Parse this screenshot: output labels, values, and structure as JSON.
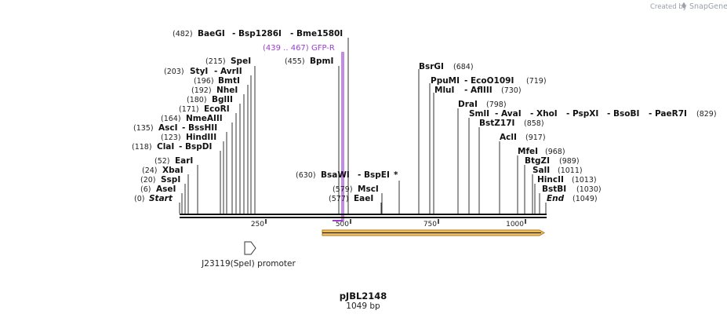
{
  "credit": {
    "created_by": "Created by",
    "brand": "SnapGene"
  },
  "plasmid": {
    "name": "pJBL2148",
    "length": "1049 bp"
  },
  "ruler": {
    "ticks": [
      "250",
      "500",
      "750",
      "1000"
    ]
  },
  "primer": {
    "range": "(439 .. 467)",
    "name": "GFP-R"
  },
  "features": {
    "promoter": "J23119(SpeI) promoter"
  },
  "colors": {
    "primer": "#9b3fd1",
    "orf_fill": "#f6c35f",
    "orf_stroke": "#b07a1e"
  },
  "site_rows": [
    {
      "pos": "(482)",
      "names": [
        "BaeGI",
        "- Bsp1286I",
        "- Bme1580I"
      ]
    },
    {
      "pos": "(215)",
      "names": [
        "SpeI"
      ]
    },
    {
      "pos": "(455)",
      "names": [
        "BpmI"
      ]
    },
    {
      "pos": "(203)",
      "names": [
        "StyI",
        "- AvrII"
      ]
    },
    {
      "pos": "(196)",
      "names": [
        "BmtI"
      ]
    },
    {
      "pos": "(192)",
      "names": [
        "NheI"
      ]
    },
    {
      "pos": "(180)",
      "names": [
        "BglII"
      ]
    },
    {
      "pos": "(171)",
      "names": [
        "EcoRI"
      ]
    },
    {
      "pos": "(164)",
      "names": [
        "NmeAIII"
      ]
    },
    {
      "pos": "(135)",
      "names": [
        "AscI",
        "- BssHII"
      ]
    },
    {
      "pos": "(123)",
      "names": [
        "HindIII"
      ]
    },
    {
      "pos": "(118)",
      "names": [
        "ClaI",
        "- BspDI"
      ]
    },
    {
      "pos": "(52)",
      "names": [
        "EarI"
      ]
    },
    {
      "pos": "(24)",
      "names": [
        "XbaI"
      ]
    },
    {
      "pos": "(20)",
      "names": [
        "SspI"
      ]
    },
    {
      "pos": "(6)",
      "names": [
        "AseI"
      ]
    },
    {
      "pos": "(0)",
      "names": [
        "Start"
      ]
    },
    {
      "pos": "(630)",
      "names": [
        "BsaWI",
        "- BspEI",
        "*"
      ]
    },
    {
      "pos": "(579)",
      "names": [
        "MscI"
      ]
    },
    {
      "pos": "(577)",
      "names": [
        "EaeI"
      ]
    },
    {
      "pos": "(684)",
      "names": [
        "BsrGI"
      ]
    },
    {
      "pos": "(719)",
      "names": [
        "PpuMI",
        "- EcoO109I"
      ]
    },
    {
      "pos": "(730)",
      "names": [
        "MluI",
        "- AflIII"
      ]
    },
    {
      "pos": "(798)",
      "names": [
        "DraI"
      ]
    },
    {
      "pos": "(829)",
      "names": [
        "SmlI",
        "- AvaI",
        "- XhoI",
        "- PspXI",
        "- BsoBI",
        "- PaeR7I"
      ]
    },
    {
      "pos": "(858)",
      "names": [
        "BstZ17I"
      ]
    },
    {
      "pos": "(917)",
      "names": [
        "AclI"
      ]
    },
    {
      "pos": "(968)",
      "names": [
        "MfeI"
      ]
    },
    {
      "pos": "(989)",
      "names": [
        "BtgZI"
      ]
    },
    {
      "pos": "(1011)",
      "names": [
        "SalI"
      ]
    },
    {
      "pos": "(1013)",
      "names": [
        "HincII"
      ]
    },
    {
      "pos": "(1030)",
      "names": [
        "BstBI"
      ]
    },
    {
      "pos": "(1049)",
      "names": [
        "End"
      ]
    }
  ]
}
